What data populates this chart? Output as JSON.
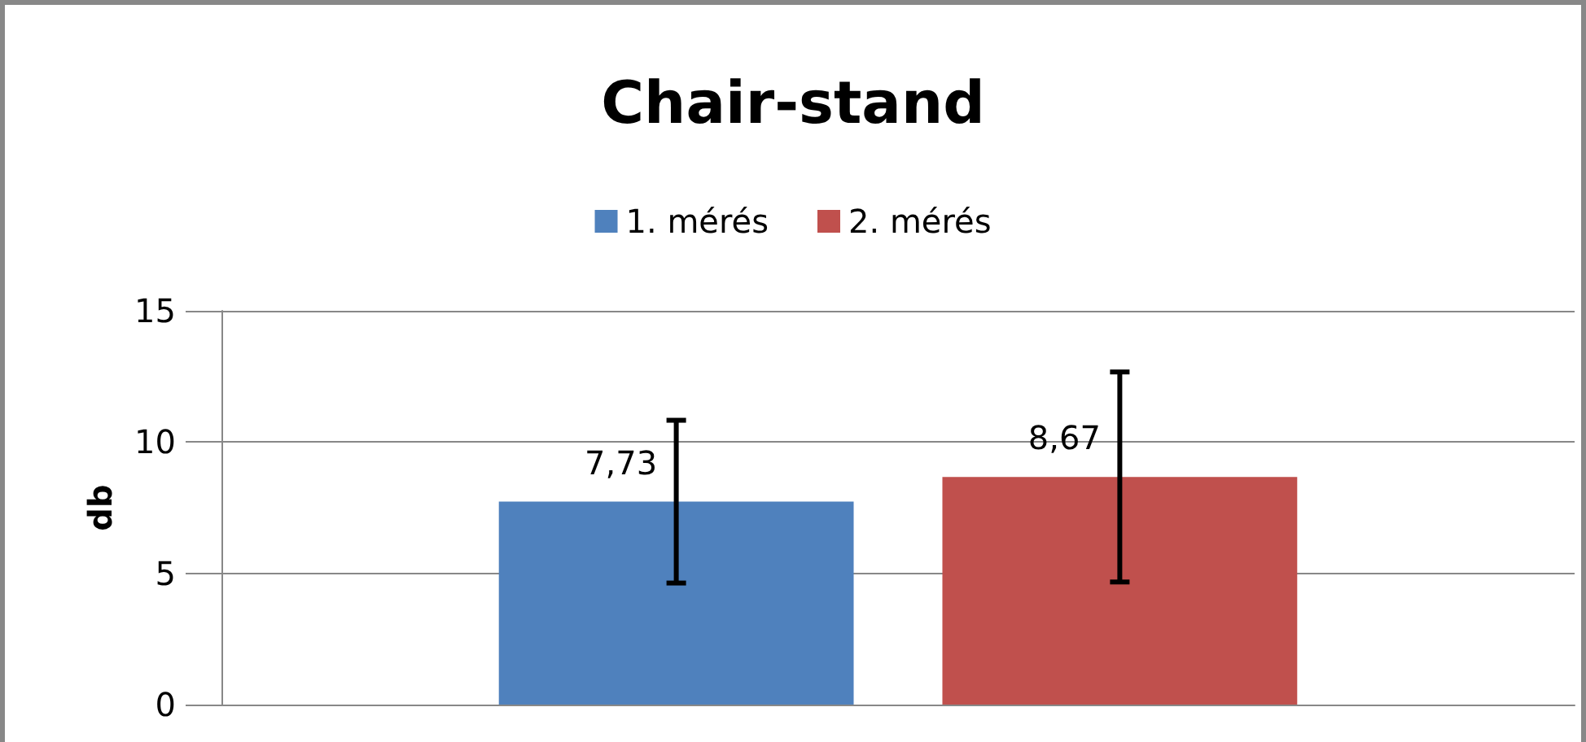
{
  "chart_data": {
    "type": "bar",
    "title": "Chair-stand",
    "ylabel": "db",
    "categories": [
      null
    ],
    "series": [
      {
        "name": "1. mérés",
        "color": "#4f81bd",
        "values": [
          7.73
        ],
        "errors": [
          3.1
        ],
        "value_labels": [
          "7,73"
        ]
      },
      {
        "name": "2. mérés",
        "color": "#c0504d",
        "values": [
          8.67
        ],
        "errors": [
          4.0
        ],
        "value_labels": [
          "8,67"
        ]
      }
    ],
    "ylim": [
      0,
      15
    ],
    "yticks": [
      0,
      5,
      10,
      15
    ],
    "grid": "y",
    "legend": "top"
  }
}
